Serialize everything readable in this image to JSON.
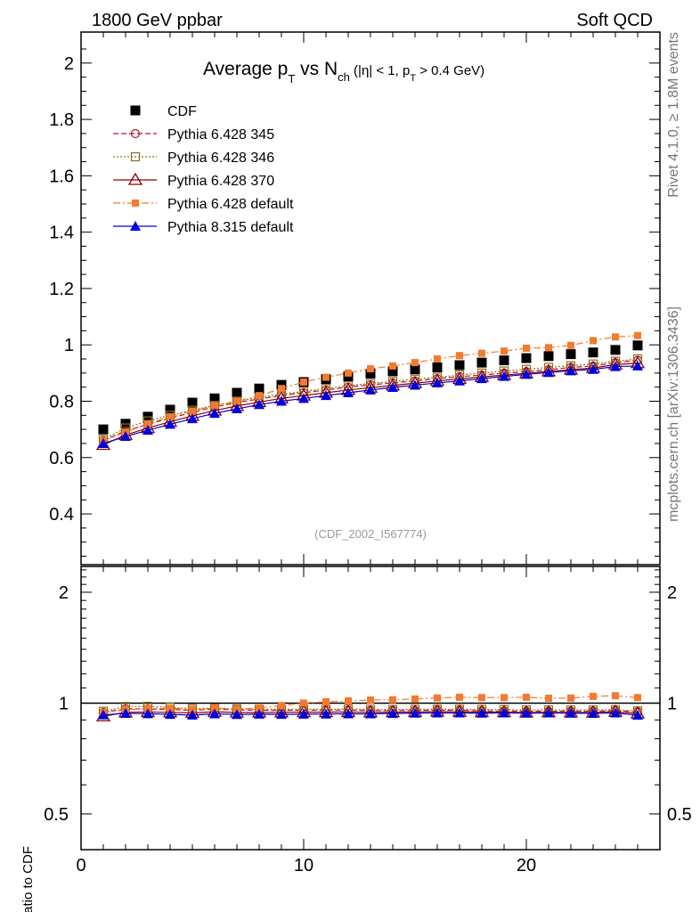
{
  "header": {
    "left": "1800 GeV ppbar",
    "right": "Soft QCD",
    "side_top": "Rivet 4.1.0, ≥ 1.8M events",
    "side_bottom": "mcplots.cern.ch [arXiv:1306.3436]",
    "analysis_id": "(CDF_2002_I567774)"
  },
  "title": {
    "main": "Average p",
    "sub_t": "T",
    "vs": " vs N",
    "sub_ch": "ch",
    "cuts_a": " (|η| < 1, p",
    "cuts_t": "T",
    "cuts_b": " > 0.4 GeV)"
  },
  "chart_data": [
    {
      "type": "scatter",
      "panel": "main",
      "title": "Average pT vs Nch (|η| < 1, pT > 0.4 GeV)",
      "xlabel": "",
      "ylabel": "",
      "xlim": [
        0,
        26
      ],
      "ylim": [
        0.22,
        2.11
      ],
      "yticks": [
        0.4,
        0.6,
        0.8,
        1,
        1.2,
        1.4,
        1.6,
        1.8,
        2
      ],
      "ytick_labels": [
        "0.4",
        "0.6",
        "0.8",
        "1",
        "1.2",
        "1.4",
        "1.6",
        "1.8",
        "2"
      ],
      "x": [
        1,
        2,
        3,
        4,
        5,
        6,
        7,
        8,
        9,
        10,
        11,
        12,
        13,
        14,
        15,
        16,
        17,
        18,
        19,
        20,
        21,
        22,
        23,
        24,
        25
      ],
      "legend_position": "top-left",
      "series": [
        {
          "name": "CDF",
          "color": "#000000",
          "marker": "square-filled",
          "line": "none",
          "values": [
            0.7,
            0.72,
            0.745,
            0.77,
            0.795,
            0.81,
            0.83,
            0.845,
            0.858,
            0.868,
            0.878,
            0.888,
            0.898,
            0.906,
            0.913,
            0.92,
            0.928,
            0.937,
            0.945,
            0.953,
            0.96,
            0.967,
            0.973,
            0.982,
            0.998
          ]
        },
        {
          "name": "Pythia 6.428 345",
          "color": "#b2182b",
          "marker": "circle-open",
          "line": "dashed",
          "values": [
            0.66,
            0.695,
            0.718,
            0.74,
            0.76,
            0.78,
            0.795,
            0.808,
            0.82,
            0.83,
            0.84,
            0.85,
            0.858,
            0.865,
            0.872,
            0.88,
            0.887,
            0.893,
            0.9,
            0.905,
            0.912,
            0.92,
            0.925,
            0.937,
            0.945
          ]
        },
        {
          "name": "Pythia 6.428 346",
          "color": "#8c6e1e",
          "marker": "square-open",
          "line": "dotted",
          "values": [
            0.665,
            0.705,
            0.73,
            0.75,
            0.768,
            0.785,
            0.8,
            0.813,
            0.825,
            0.835,
            0.845,
            0.855,
            0.863,
            0.87,
            0.878,
            0.885,
            0.893,
            0.9,
            0.907,
            0.913,
            0.92,
            0.926,
            0.932,
            0.942,
            0.95
          ]
        },
        {
          "name": "Pythia 6.428 370",
          "color": "#8b0000",
          "marker": "triangle-open",
          "line": "solid",
          "values": [
            0.645,
            0.68,
            0.705,
            0.727,
            0.748,
            0.767,
            0.783,
            0.797,
            0.81,
            0.82,
            0.83,
            0.84,
            0.848,
            0.856,
            0.864,
            0.872,
            0.879,
            0.886,
            0.893,
            0.899,
            0.906,
            0.912,
            0.918,
            0.93,
            0.935
          ]
        },
        {
          "name": "Pythia 6.428 default",
          "color": "#f47a30",
          "marker": "square-filled-small",
          "line": "dashdot",
          "values": [
            0.66,
            0.69,
            0.72,
            0.745,
            0.765,
            0.785,
            0.8,
            0.82,
            0.845,
            0.868,
            0.885,
            0.9,
            0.915,
            0.925,
            0.937,
            0.95,
            0.962,
            0.97,
            0.978,
            0.988,
            0.99,
            0.998,
            1.015,
            1.028,
            1.033
          ]
        },
        {
          "name": "Pythia 8.315 default",
          "color": "#0000dd",
          "marker": "triangle-filled",
          "line": "solid",
          "values": [
            0.65,
            0.675,
            0.697,
            0.718,
            0.738,
            0.757,
            0.773,
            0.788,
            0.8,
            0.81,
            0.82,
            0.83,
            0.84,
            0.849,
            0.857,
            0.865,
            0.872,
            0.88,
            0.888,
            0.895,
            0.902,
            0.908,
            0.913,
            0.923,
            0.925
          ]
        }
      ]
    },
    {
      "type": "scatter",
      "panel": "ratio",
      "ylabel": "Ratio to CDF",
      "xlabel": "",
      "xlim": [
        0,
        26
      ],
      "ylim": [
        0.4,
        2.35
      ],
      "yscale": "log",
      "yticks": [
        0.5,
        1,
        2
      ],
      "ytick_labels": [
        "0.5",
        "1",
        "2"
      ],
      "xticks": [
        0,
        10,
        20
      ],
      "xtick_labels": [
        "0",
        "10",
        "20"
      ],
      "reference_line": 1,
      "x": [
        1,
        2,
        3,
        4,
        5,
        6,
        7,
        8,
        9,
        10,
        11,
        12,
        13,
        14,
        15,
        16,
        17,
        18,
        19,
        20,
        21,
        22,
        23,
        24,
        25
      ],
      "series": [
        {
          "name": "Pythia 6.428 345",
          "color": "#b2182b",
          "marker": "circle-open",
          "line": "dashed",
          "values": [
            0.943,
            0.965,
            0.964,
            0.961,
            0.956,
            0.963,
            0.958,
            0.956,
            0.956,
            0.956,
            0.957,
            0.957,
            0.955,
            0.955,
            0.955,
            0.957,
            0.956,
            0.953,
            0.952,
            0.95,
            0.95,
            0.951,
            0.951,
            0.954,
            0.947
          ]
        },
        {
          "name": "Pythia 6.428 346",
          "color": "#8c6e1e",
          "marker": "square-open",
          "line": "dotted",
          "values": [
            0.95,
            0.979,
            0.98,
            0.974,
            0.966,
            0.969,
            0.964,
            0.962,
            0.962,
            0.962,
            0.962,
            0.963,
            0.961,
            0.96,
            0.962,
            0.962,
            0.962,
            0.961,
            0.96,
            0.958,
            0.958,
            0.958,
            0.958,
            0.959,
            0.952
          ]
        },
        {
          "name": "Pythia 6.428 370",
          "color": "#8b0000",
          "marker": "triangle-open",
          "line": "solid",
          "values": [
            0.921,
            0.944,
            0.946,
            0.944,
            0.941,
            0.947,
            0.943,
            0.943,
            0.944,
            0.945,
            0.945,
            0.946,
            0.944,
            0.945,
            0.946,
            0.948,
            0.947,
            0.946,
            0.945,
            0.943,
            0.944,
            0.943,
            0.943,
            0.947,
            0.937
          ]
        },
        {
          "name": "Pythia 6.428 default",
          "color": "#f47a30",
          "marker": "square-filled-small",
          "line": "dashdot",
          "values": [
            0.943,
            0.958,
            0.966,
            0.968,
            0.962,
            0.969,
            0.964,
            0.97,
            0.985,
            1.0,
            1.008,
            1.014,
            1.019,
            1.021,
            1.026,
            1.033,
            1.037,
            1.035,
            1.035,
            1.037,
            1.031,
            1.032,
            1.043,
            1.047,
            1.035
          ]
        },
        {
          "name": "Pythia 8.315 default",
          "color": "#0000dd",
          "marker": "triangle-filled",
          "line": "solid",
          "values": [
            0.929,
            0.938,
            0.936,
            0.932,
            0.928,
            0.935,
            0.931,
            0.933,
            0.932,
            0.933,
            0.934,
            0.935,
            0.935,
            0.937,
            0.939,
            0.94,
            0.94,
            0.939,
            0.94,
            0.939,
            0.94,
            0.939,
            0.938,
            0.94,
            0.927
          ]
        }
      ]
    }
  ]
}
